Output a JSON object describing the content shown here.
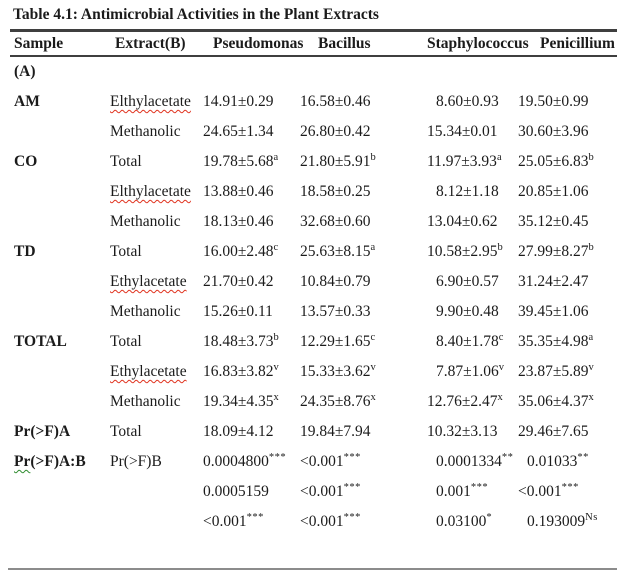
{
  "title": "Table 4.1: Antimicrobial Activities in the Plant Extracts",
  "columns": [
    "Sample",
    "Extract(B)",
    "Pseudomonas",
    "Bacillus",
    "Staphylococcus",
    "Penicillium"
  ],
  "rows": [
    {
      "sample": "(A)",
      "extract": "",
      "cells": [
        {
          "v": "",
          "s": ""
        },
        {
          "v": "",
          "s": ""
        },
        {
          "v": "",
          "s": ""
        },
        {
          "v": "",
          "s": ""
        }
      ]
    },
    {
      "sample": "AM",
      "extract": "Elthylacetate",
      "cells": [
        {
          "v": "14.91±0.29",
          "s": ""
        },
        {
          "v": "16.58±0.46",
          "s": ""
        },
        {
          "v": "8.60±0.93",
          "s": ""
        },
        {
          "v": "19.50±0.99",
          "s": ""
        }
      ]
    },
    {
      "sample": "",
      "extract": "Methanolic",
      "cells": [
        {
          "v": "24.65±1.34",
          "s": ""
        },
        {
          "v": "26.80±0.42",
          "s": ""
        },
        {
          "v": "15.34±0.01",
          "s": ""
        },
        {
          "v": "30.60±3.96",
          "s": ""
        }
      ]
    },
    {
      "sample": "CO",
      "extract": "Total",
      "cells": [
        {
          "v": "19.78±5.68",
          "s": "a"
        },
        {
          "v": "21.80±5.91",
          "s": "b"
        },
        {
          "v": "11.97±3.93",
          "s": "a"
        },
        {
          "v": "25.05±6.83",
          "s": "b"
        }
      ]
    },
    {
      "sample": "",
      "extract": "Elthylacetate",
      "cells": [
        {
          "v": "13.88±0.46",
          "s": ""
        },
        {
          "v": "18.58±0.25",
          "s": ""
        },
        {
          "v": "8.12±1.18",
          "s": ""
        },
        {
          "v": "20.85±1.06",
          "s": ""
        }
      ]
    },
    {
      "sample": "",
      "extract": "Methanolic",
      "cells": [
        {
          "v": "18.13±0.46",
          "s": ""
        },
        {
          "v": "32.68±0.60",
          "s": ""
        },
        {
          "v": "13.04±0.62",
          "s": ""
        },
        {
          "v": "35.12±0.45",
          "s": ""
        }
      ]
    },
    {
      "sample": "TD",
      "extract": "Total",
      "cells": [
        {
          "v": "16.00±2.48",
          "s": "c"
        },
        {
          "v": "25.63±8.15",
          "s": "a"
        },
        {
          "v": "10.58±2.95",
          "s": "b"
        },
        {
          "v": "27.99±8.27",
          "s": "b"
        }
      ]
    },
    {
      "sample": "",
      "extract": "Ethylacetate",
      "cells": [
        {
          "v": "21.70±0.42",
          "s": ""
        },
        {
          "v": "10.84±0.79",
          "s": ""
        },
        {
          "v": "6.90±0.57",
          "s": ""
        },
        {
          "v": "31.24±2.47",
          "s": ""
        }
      ]
    },
    {
      "sample": "",
      "extract": "Methanolic",
      "cells": [
        {
          "v": "15.26±0.11",
          "s": ""
        },
        {
          "v": "13.57±0.33",
          "s": ""
        },
        {
          "v": "9.90±0.48",
          "s": ""
        },
        {
          "v": "39.45±1.06",
          "s": ""
        }
      ]
    },
    {
      "sample": "TOTAL",
      "extract": "Total",
      "cells": [
        {
          "v": "18.48±3.73",
          "s": "b"
        },
        {
          "v": "12.29±1.65",
          "s": "c"
        },
        {
          "v": "8.40±1.78",
          "s": "c"
        },
        {
          "v": "35.35±4.98",
          "s": "a"
        }
      ]
    },
    {
      "sample": "",
      "extract": "Ethylacetate",
      "cells": [
        {
          "v": "16.83±3.82",
          "s": "v"
        },
        {
          "v": "15.33±3.62",
          "s": "v"
        },
        {
          "v": "7.87±1.06",
          "s": "v"
        },
        {
          "v": "23.87±5.89",
          "s": "v"
        }
      ]
    },
    {
      "sample": "",
      "extract": "Methanolic",
      "cells": [
        {
          "v": "19.34±4.35",
          "s": "x"
        },
        {
          "v": "24.35±8.76",
          "s": "x"
        },
        {
          "v": "12.76±2.47",
          "s": "x"
        },
        {
          "v": "35.06±4.37",
          "s": "x"
        }
      ]
    },
    {
      "sample": "Pr(>F)A",
      "extract": "Total",
      "cells": [
        {
          "v": "18.09±4.12",
          "s": ""
        },
        {
          "v": "19.84±7.94",
          "s": ""
        },
        {
          "v": "10.32±3.13",
          "s": ""
        },
        {
          "v": "29.46±7.65",
          "s": ""
        }
      ]
    },
    {
      "sample_prefix": "Pr",
      "sample_rest": "(>F)A:B",
      "extract": "Pr(>F)B",
      "cells": [
        {
          "v": "0.0004800",
          "s": "***"
        },
        {
          "v": "<0.001",
          "s": "***"
        },
        {
          "v": "0.0001334",
          "s": "**"
        },
        {
          "v": "0.01033",
          "s": "**"
        }
      ]
    },
    {
      "sample": "",
      "extract": "",
      "cells": [
        {
          "v": "0.0005159",
          "s": ""
        },
        {
          "v": "<0.001",
          "s": "***"
        },
        {
          "v": "0.001",
          "s": "***"
        },
        {
          "v": "<0.001",
          "s": "***"
        }
      ]
    },
    {
      "sample": "",
      "extract": "",
      "cells": [
        {
          "v": "<0.001",
          "s": "***"
        },
        {
          "v": "<0.001",
          "s": "***"
        },
        {
          "v": "0.03100",
          "s": "*"
        },
        {
          "v": "0.193009",
          "s": "Ns"
        }
      ]
    }
  ],
  "colors": {
    "text": "#1b1b1b",
    "rule_dark": "#3f3f3f",
    "rule_bottom": "#8c8c8c",
    "spellcheck_squiggle": "#e0321e",
    "grammar_squiggle": "#2e8b2e"
  }
}
